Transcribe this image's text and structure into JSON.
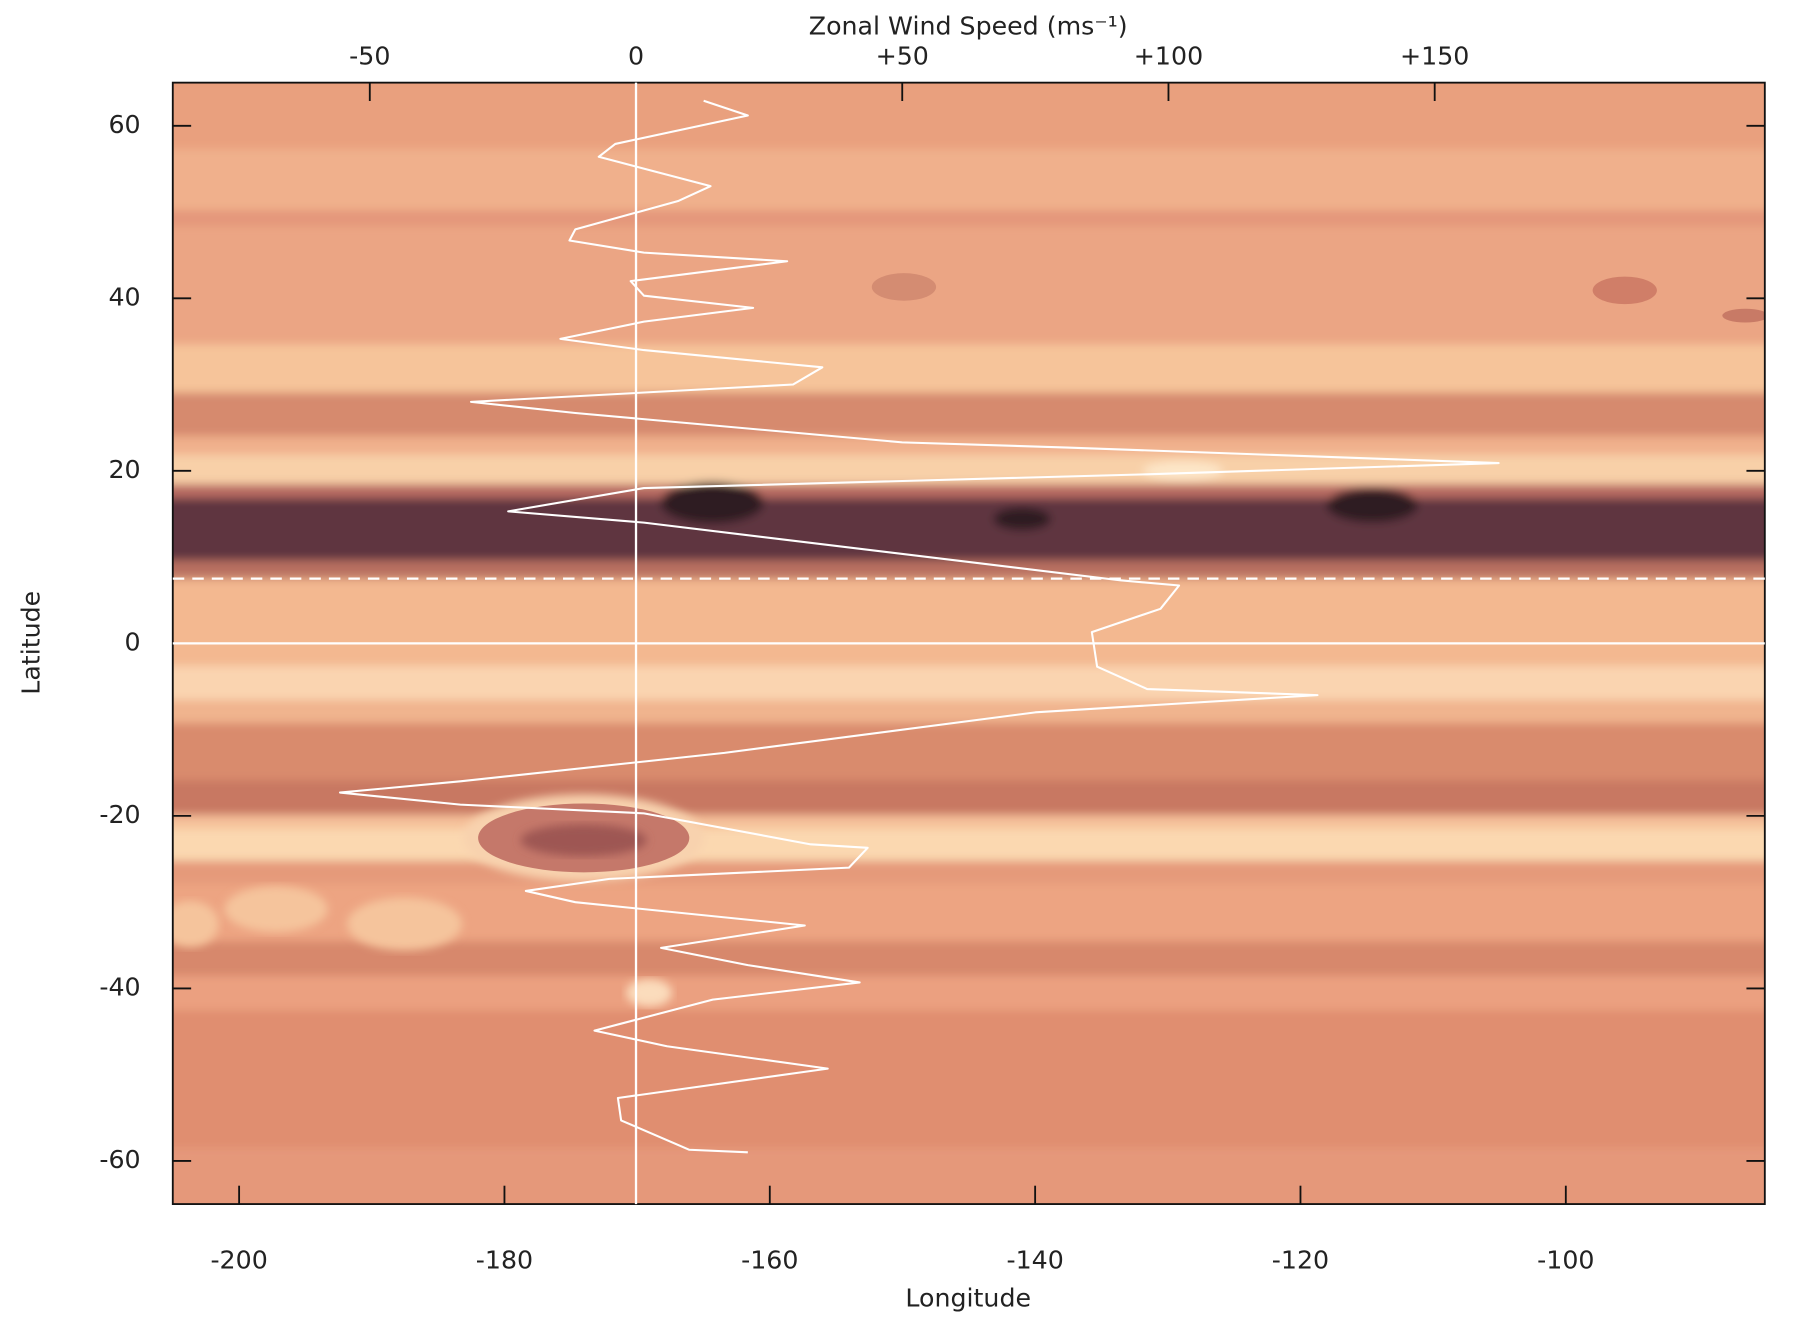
{
  "chart_data": {
    "type": "line",
    "xlabel": "Longitude",
    "ylabel": "Latitude",
    "x2label": "Zonal Wind Speed (ms⁻¹)",
    "xlim": [
      -205,
      -85
    ],
    "xticks": [
      -200,
      -180,
      -160,
      -140,
      -120,
      -100
    ],
    "ylim": [
      -65,
      65
    ],
    "yticks": [
      -60,
      -40,
      -20,
      0,
      20,
      40,
      60
    ],
    "x2lim": [
      -87,
      212
    ],
    "x2ticks": [
      -50,
      0,
      {
        "value": 50,
        "label": "+50"
      },
      {
        "value": 100,
        "label": "+100"
      },
      {
        "value": 150,
        "label": "+150"
      }
    ],
    "color": "#ffffff",
    "x": [
      12.7,
      21,
      -3.9,
      -7,
      14,
      8,
      -11.4,
      -12.5,
      1.5,
      28.4,
      -1,
      1.5,
      22,
      1.5,
      -14.2,
      1.5,
      35,
      29.5,
      -31,
      -11.4,
      50,
      81,
      162,
      96,
      1.5,
      -24,
      1.5,
      91,
      102,
      98.5,
      85.6,
      86.6,
      96,
      128,
      75,
      16.6,
      -33,
      -55.6,
      -33,
      1.5,
      32.8,
      43.5,
      40,
      -5,
      -20.7,
      -11.4,
      31.7,
      4.7,
      21,
      42,
      14.4,
      -7.8,
      5.8,
      36,
      -3.4,
      -2.8,
      10,
      21
    ],
    "values": [
      62.9,
      61.2,
      57.9,
      56.4,
      53,
      51.3,
      48,
      46.7,
      45.3,
      44.3,
      42,
      40.3,
      38.9,
      37.3,
      35.3,
      34,
      32,
      30,
      28,
      26.7,
      23.3,
      22.7,
      20.9,
      19.6,
      18,
      15.3,
      14,
      7.3,
      6.7,
      4,
      1.3,
      -2.7,
      -5.3,
      -6,
      -8,
      -12.7,
      -16,
      -17.3,
      -18.7,
      -19.7,
      -23.3,
      -23.7,
      -26,
      -27.3,
      -28.7,
      -30,
      -32.7,
      -35.3,
      -37.3,
      -39.3,
      -41.3,
      -44.9,
      -46.7,
      -49.3,
      -52.7,
      -55.3,
      -58.7,
      -59
    ],
    "reference_lines": [
      {
        "axis": "y",
        "value": 0,
        "style": "solid"
      },
      {
        "axis": "y",
        "value": 7.5,
        "style": "dashed"
      },
      {
        "axis": "x2",
        "value": 0,
        "style": "solid"
      }
    ]
  }
}
